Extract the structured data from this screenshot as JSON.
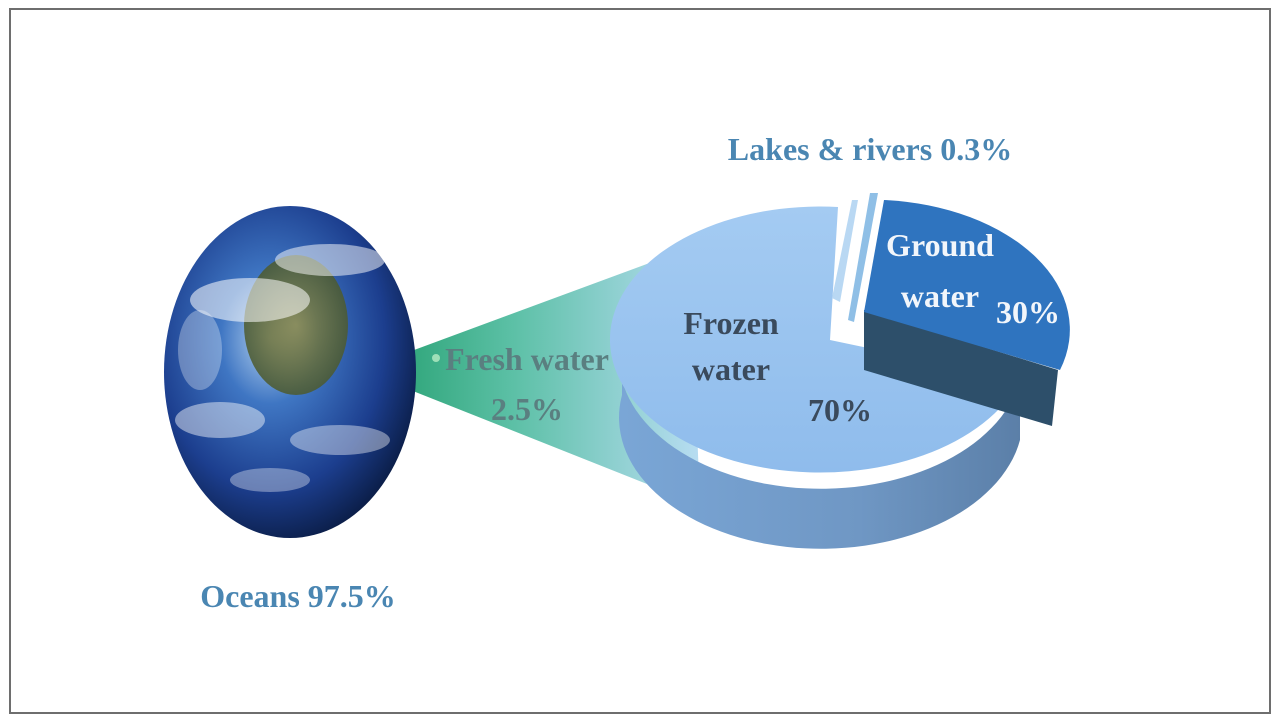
{
  "chart_data": {
    "type": "pie",
    "colors": {
      "label_blue": "#4a86b2",
      "label_dark": "#3a4a5c",
      "label_white": "#f2f6fb",
      "frozen_slice": "#97c3f0",
      "frozen_side": "#6f97c4",
      "ground_slice": "#2f74bf",
      "ground_side": "#2d4f6a",
      "lakes_slice": "#8fbfe6",
      "wedge": "#2eae80"
    },
    "oceans": {
      "label": "Oceans 97.5%",
      "value": 97.5
    },
    "fresh_water": {
      "label_line1": "Fresh water",
      "label_line2": "2.5%",
      "value": 2.5
    },
    "slices": [
      {
        "id": "frozen",
        "label_line1": "Frozen",
        "label_line2": "water",
        "value_label": "70%",
        "value": 70
      },
      {
        "id": "ground",
        "label_line1": "Ground",
        "label_line2": "water",
        "value_label": "30%",
        "value": 30
      },
      {
        "id": "lakes",
        "label": "Lakes & rivers 0.3%",
        "value": 0.3
      }
    ]
  }
}
